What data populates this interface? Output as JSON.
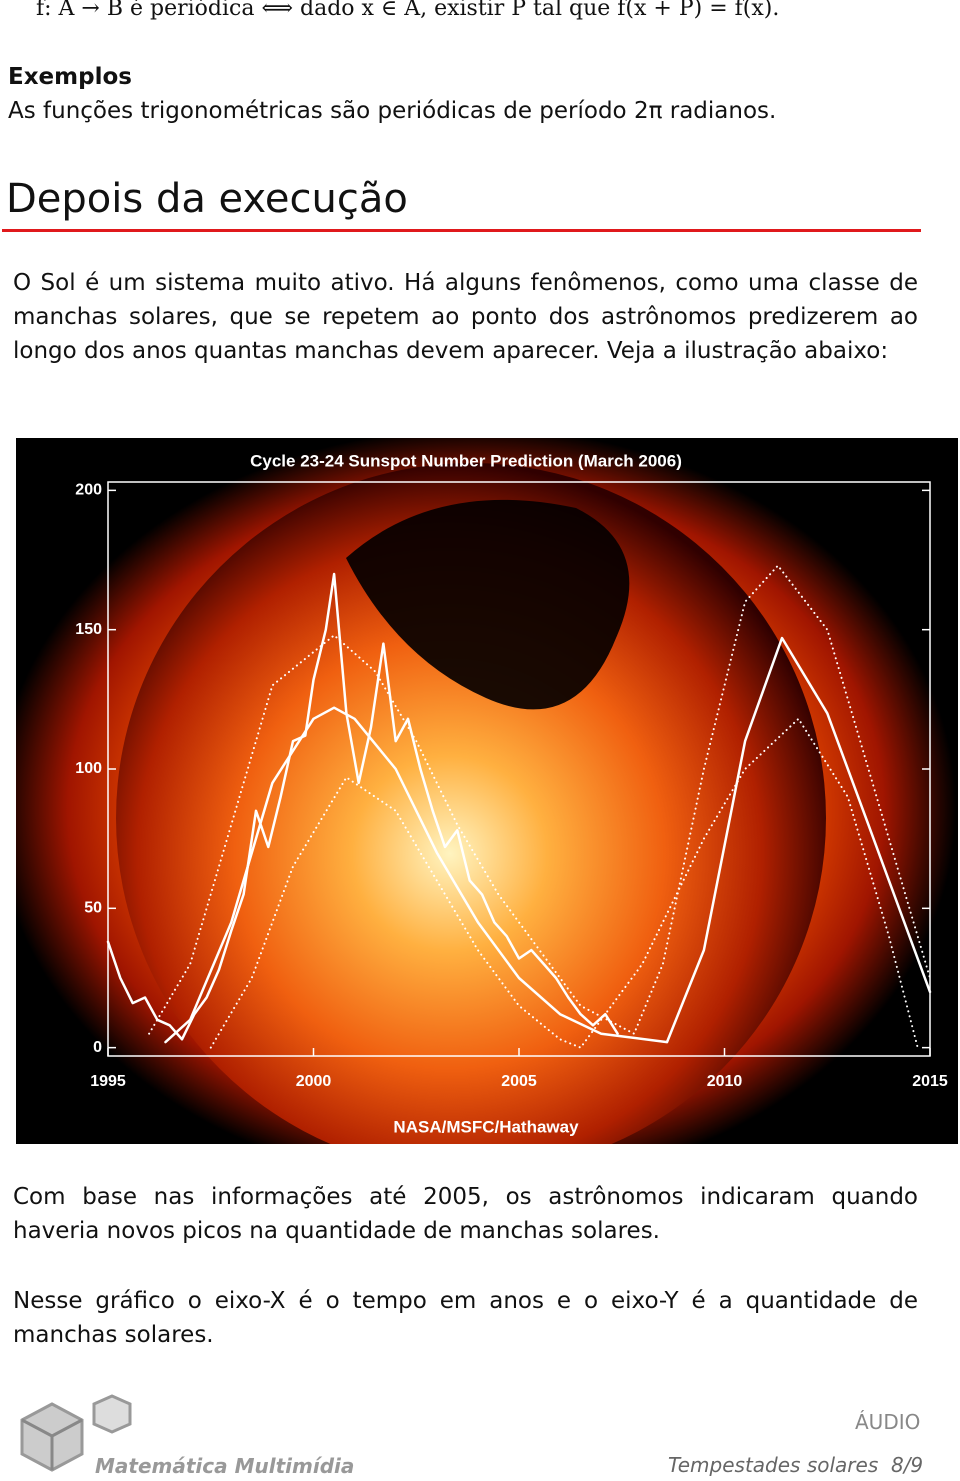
{
  "definition": "f: A → B é periódica ⟺ dado x ∈ A, existir P tal que f(x + P) = f(x).",
  "examples": {
    "heading": "Exemplos",
    "text": "As funções trigonométricas são periódicas de período 2π radianos."
  },
  "section": {
    "title": "Depois da execução",
    "paragraphs": [
      "O Sol é um sistema muito ativo. Há alguns fenômenos, como uma classe de manchas solares, que se repetem ao ponto dos astrônomos predizerem ao longo dos anos quantas manchas devem aparecer. Veja a ilustração abaixo:",
      "Com base nas informações até 2005, os astrônomos indicaram quando haveria novos picos na quantidade de manchas solares.",
      "Nesse gráfico o eixo-X é o tempo em anos e o eixo-Y é a quantidade de manchas solares."
    ]
  },
  "chart_data": {
    "type": "line",
    "title": "Cycle 23-24 Sunspot Number Prediction (March 2006)",
    "credit": "NASA/MSFC/Hathaway",
    "xlim": [
      1995,
      2015
    ],
    "xticks": [
      1995,
      2000,
      2005,
      2010,
      2015
    ],
    "ylim": [
      -3,
      203
    ],
    "yticks": [
      0,
      50,
      100,
      150,
      200
    ],
    "series": [
      {
        "color": "#ffffff",
        "style": "solid",
        "x": [
          1995.0,
          1995.3,
          1995.6,
          1995.9,
          1996.2,
          1996.5,
          1996.8,
          1997.1,
          1997.4,
          1997.7,
          1998.0,
          1998.3,
          1998.6,
          1998.9,
          1999.2,
          1999.5,
          1999.8,
          2000.0,
          2000.3,
          2000.5,
          2000.8,
          2001.1,
          2001.4,
          2001.7,
          2002.0,
          2002.3,
          2002.6,
          2002.9,
          2003.2,
          2003.5,
          2003.8,
          2004.1,
          2004.4,
          2004.7,
          2005.0,
          2005.3,
          2005.6,
          2005.9,
          2006.2,
          2006.5,
          2006.8,
          2007.1,
          2007.4
        ],
        "values": [
          38,
          25,
          16,
          18,
          10,
          8,
          3,
          12,
          18,
          28,
          42,
          55,
          85,
          72,
          90,
          110,
          112,
          132,
          150,
          170,
          120,
          95,
          115,
          145,
          110,
          118,
          100,
          85,
          72,
          78,
          60,
          55,
          45,
          40,
          32,
          35,
          30,
          25,
          18,
          12,
          8,
          12,
          5
        ]
      },
      {
        "color": "#ffffff",
        "style": "solid",
        "x": [
          1996.4,
          1997,
          1998,
          1999,
          2000,
          2000.5,
          2001,
          2002,
          2003,
          2004,
          2005,
          2006,
          2007,
          2008.6,
          2009.5,
          2010.5,
          2011.4,
          2012.5,
          2013.5,
          2014.5,
          2015
        ],
        "values": [
          2,
          10,
          45,
          95,
          118,
          122,
          118,
          100,
          70,
          45,
          25,
          12,
          5,
          2,
          35,
          110,
          147,
          120,
          80,
          40,
          20
        ]
      },
      {
        "color": "#ffffff",
        "style": "dotted",
        "x": [
          1996.0,
          1997,
          1998,
          1999,
          2000.5,
          2001.5,
          2002.5,
          2003.5,
          2004.5,
          2005.5,
          2006.5,
          2007.8,
          2008.5,
          2009.5,
          2010.5,
          2011.3,
          2012.5,
          2013.5,
          2014.5,
          2015
        ],
        "values": [
          5,
          30,
          80,
          130,
          148,
          135,
          110,
          80,
          55,
          35,
          15,
          5,
          30,
          100,
          160,
          173,
          150,
          100,
          50,
          25
        ]
      },
      {
        "color": "#ffffff",
        "style": "dotted",
        "x": [
          1997.5,
          1998.5,
          1999.5,
          2000.8,
          2002,
          2003,
          2004,
          2005,
          2006,
          2006.5,
          2008,
          2009.5,
          2010.5,
          2011.8,
          2013,
          2014,
          2014.7
        ],
        "values": [
          0,
          25,
          65,
          97,
          85,
          60,
          35,
          15,
          3,
          0,
          30,
          75,
          100,
          118,
          90,
          40,
          0
        ]
      }
    ]
  },
  "footer": {
    "brand": "Matemática Multimídia",
    "media": "ÁUDIO",
    "title": "Tempestades solares",
    "page": "8/9"
  }
}
